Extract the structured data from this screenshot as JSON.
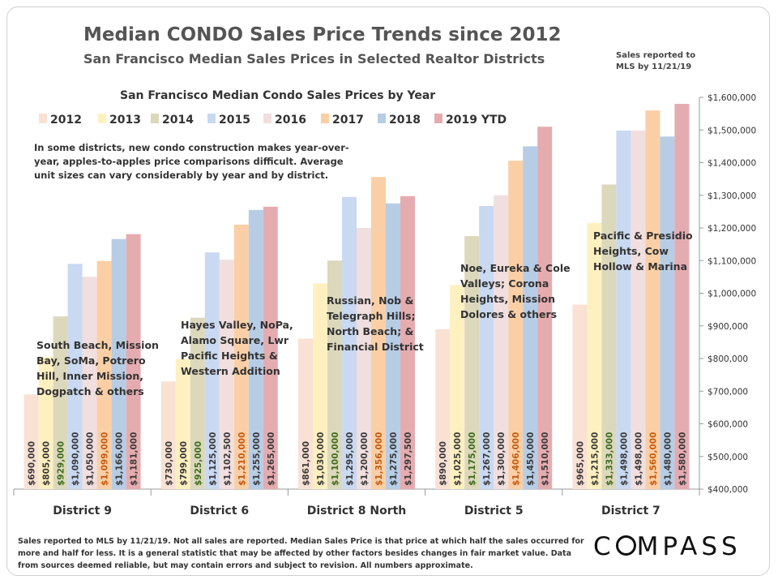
{
  "header": {
    "title": "Median CONDO Sales Price Trends since 2012",
    "subtitle": "San Francisco Median Sales Prices in Selected Realtor Districts",
    "report_note": "Sales reported to MLS by 11/21/19"
  },
  "chart_data": {
    "type": "bar",
    "title": "San Francisco Median Condo Sales Prices by Year",
    "note": "In some districts, new condo construction makes year-over-year, apples-to-apples price comparisons difficult. Average unit sizes can vary considerably by year and by district.",
    "categories": [
      "District 9",
      "District 6",
      "District 8 North",
      "District 5",
      "District 7"
    ],
    "category_descriptions": [
      [
        "South Beach, Mission",
        "Bay, SoMa, Potrero",
        "Hill, Inner Mission,",
        "Dogpatch & others"
      ],
      [
        "Hayes Valley, NoPa,",
        "Alamo Square, Lwr",
        "Pacific Heights &",
        "Western Addition"
      ],
      [
        "Russian, Nob &",
        "Telegraph Hills;",
        "North Beach; &",
        "Financial District"
      ],
      [
        "Noe, Eureka & Cole",
        "Valleys; Corona",
        "Heights, Mission",
        "Dolores & others"
      ],
      [
        "Pacific & Presidio",
        "Heights, Cow",
        "Hollow & Marina"
      ]
    ],
    "series": [
      {
        "name": "2012",
        "color": "#f9e1d4",
        "values": [
          690000,
          730000,
          861000,
          890000,
          965000
        ],
        "labels": [
          "$690,000",
          "$730,000",
          "$861,000",
          "$890,000",
          "$965,000"
        ]
      },
      {
        "name": "2013",
        "color": "#fff0c0",
        "values": [
          805000,
          799000,
          1030000,
          1025000,
          1215000
        ],
        "labels": [
          "$805,000",
          "$799,000",
          "$1,030,000",
          "$1,025,000",
          "$1,215,000"
        ]
      },
      {
        "name": "2014",
        "color": "#dcd8bc",
        "values": [
          929000,
          925000,
          1100000,
          1175000,
          1333000
        ],
        "labels": [
          "$929,000",
          "$925,000",
          "$1,100,000",
          "$1,175,000",
          "$1,333,000"
        ]
      },
      {
        "name": "2015",
        "color": "#c8d9f1",
        "values": [
          1090000,
          1125000,
          1295000,
          1267000,
          1498000
        ],
        "labels": [
          "$1,090,000",
          "$1,125,000",
          "$1,295,000",
          "$1,267,000",
          "$1,498,000"
        ]
      },
      {
        "name": "2016",
        "color": "#f1dede",
        "values": [
          1050000,
          1102500,
          1200000,
          1300000,
          1498000
        ],
        "labels": [
          "$1,050,000",
          "$1,102,500",
          "$1,200,000",
          "$1,300,000",
          "$1,498,000"
        ]
      },
      {
        "name": "2017",
        "color": "#fbcfa5",
        "values": [
          1099000,
          1210000,
          1356000,
          1406000,
          1560000
        ],
        "labels": [
          "$1,099,000",
          "$1,210,000",
          "$1,356,000",
          "$1,406,000",
          "$1,560,000"
        ]
      },
      {
        "name": "2018",
        "color": "#b7cde6",
        "values": [
          1166000,
          1255000,
          1275000,
          1450000,
          1480000
        ],
        "labels": [
          "$1,166,000",
          "$1,255,000",
          "$1,275,000",
          "$1,450,000",
          "$1,480,000"
        ]
      },
      {
        "name": "2019 YTD",
        "color": "#e5acb0",
        "values": [
          1181000,
          1265000,
          1297500,
          1510000,
          1580000
        ],
        "labels": [
          "$1,181,000",
          "$1,265,000",
          "$1,297,500",
          "$1,510,000",
          "$1,580,000"
        ]
      }
    ],
    "label_colors": {
      "2014": "#3f6b1f",
      "2017": "#c55a11",
      "default": "#3a3a3a"
    },
    "ylim": [
      400000,
      1600000
    ],
    "yticks": [
      400000,
      500000,
      600000,
      700000,
      800000,
      900000,
      1000000,
      1100000,
      1200000,
      1300000,
      1400000,
      1500000,
      1600000
    ],
    "ytick_labels": [
      "$400,000",
      "$500,000",
      "$600,000",
      "$700,000",
      "$800,000",
      "$900,000",
      "$1,000,000",
      "$1,100,000",
      "$1,200,000",
      "$1,300,000",
      "$1,400,000",
      "$1,500,000",
      "$1,600,000"
    ],
    "y_axis_position": "right",
    "grid": false,
    "legend_position": "top-left"
  },
  "footnote": "Sales reported to MLS by 11/21/19. Not all sales are reported. Median Sales Price is that price at which half the sales occurred for more and half for less. It is a general statistic that may be affected by other factors besides changes in fair market value. Data from sources deemed reliable, but may contain errors and subject to revision.  All numbers approximate.",
  "brand": {
    "logo_text": "COMPASS"
  }
}
